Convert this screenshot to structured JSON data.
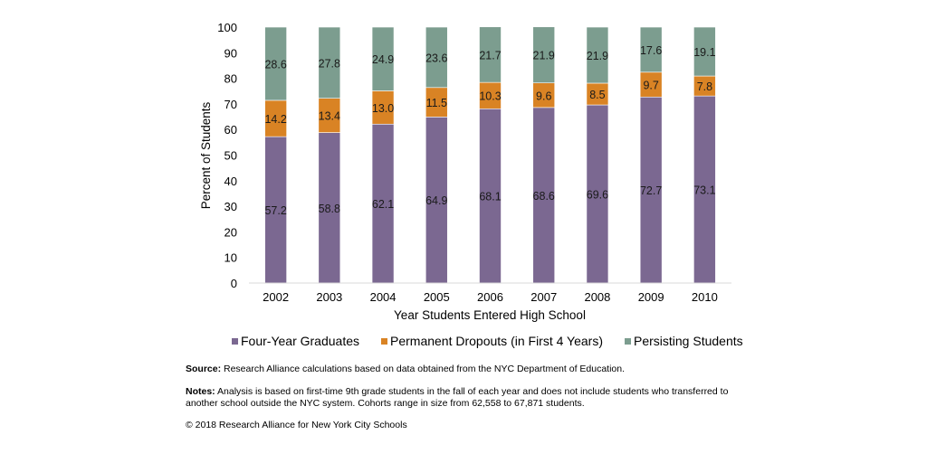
{
  "chart_data": {
    "type": "bar",
    "stacked": true,
    "title": "",
    "xlabel": "Year Students Entered High School",
    "ylabel": "Percent of Students",
    "ylim": [
      0,
      100
    ],
    "yticks": [
      0,
      10,
      20,
      30,
      40,
      50,
      60,
      70,
      80,
      90,
      100
    ],
    "grid": false,
    "legend_position": "bottom",
    "categories": [
      "2002",
      "2003",
      "2004",
      "2005",
      "2006",
      "2007",
      "2008",
      "2009",
      "2010"
    ],
    "series": [
      {
        "name": "Four-Year Graduates",
        "color": "#7b6891",
        "values": [
          57.2,
          58.8,
          62.1,
          64.9,
          68.1,
          68.6,
          69.6,
          72.7,
          73.1
        ]
      },
      {
        "name": "Permanent Dropouts (in First 4 Years)",
        "color": "#d98324",
        "values": [
          14.2,
          13.4,
          13.0,
          11.5,
          10.3,
          9.6,
          8.5,
          9.7,
          7.8
        ]
      },
      {
        "name": "Persisting Students",
        "color": "#7c9d8f",
        "values": [
          28.6,
          27.8,
          24.9,
          23.6,
          21.7,
          21.9,
          21.9,
          17.6,
          19.1
        ]
      }
    ]
  },
  "footer": {
    "source_label": "Source:",
    "source_text": " Research Alliance calculations based on data obtained from the NYC Department of Education.",
    "notes_label": "Notes:",
    "notes_text": " Analysis is based on first-time 9th grade students in the fall of each year and does not include students who transferred to another school outside the NYC system. Cohorts range in size from 62,558 to 67,871 students.",
    "copyright": "© 2018 Research Alliance for New York City Schools"
  }
}
